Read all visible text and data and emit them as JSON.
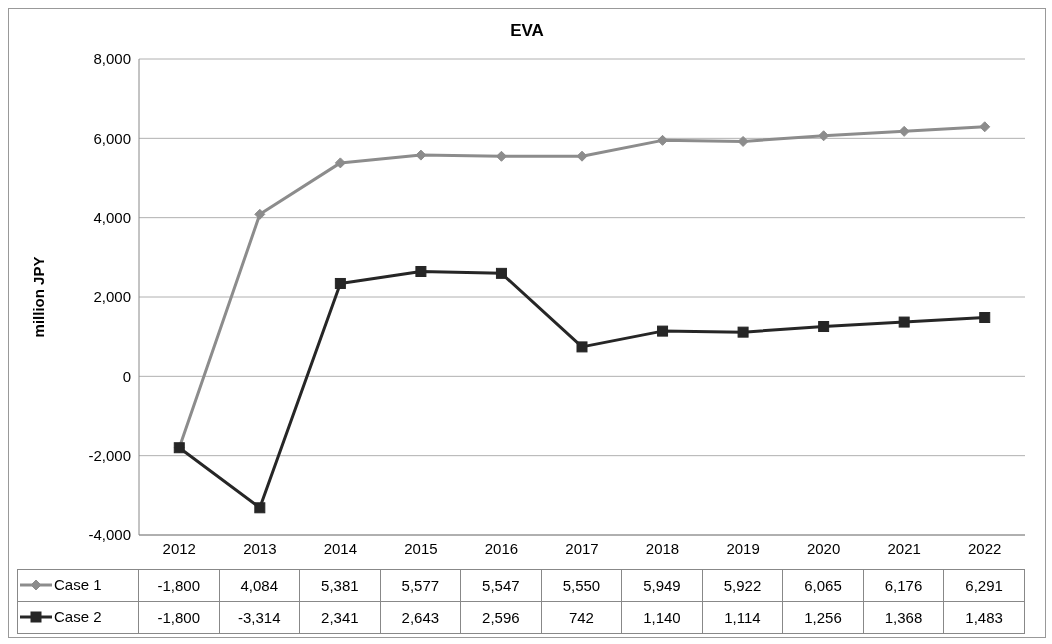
{
  "chart_data": {
    "type": "line",
    "title": "EVA",
    "ylabel": "million JPY",
    "categories": [
      "2012",
      "2013",
      "2014",
      "2015",
      "2016",
      "2017",
      "2018",
      "2019",
      "2020",
      "2021",
      "2022"
    ],
    "series": [
      {
        "name": "Case 1",
        "color": "#8c8c8c",
        "marker": "diamond",
        "values": [
          -1800,
          4084,
          5381,
          5577,
          5547,
          5550,
          5949,
          5922,
          6065,
          6176,
          6291
        ],
        "value_labels": [
          "-1,800",
          "4,084",
          "5,381",
          "5,577",
          "5,547",
          "5,550",
          "5,949",
          "5,922",
          "6,065",
          "6,176",
          "6,291"
        ]
      },
      {
        "name": "Case 2",
        "color": "#262626",
        "marker": "square",
        "values": [
          -1800,
          -3314,
          2341,
          2643,
          2596,
          742,
          1140,
          1114,
          1256,
          1368,
          1483
        ],
        "value_labels": [
          "-1,800",
          "-3,314",
          "2,341",
          "2,643",
          "2,596",
          "742",
          "1,140",
          "1,114",
          "1,256",
          "1,368",
          "1,483"
        ]
      }
    ],
    "ylim": [
      -4000,
      8000
    ],
    "yticks": [
      {
        "value": -4000,
        "label": "-4,000"
      },
      {
        "value": -2000,
        "label": "-2,000"
      },
      {
        "value": 0,
        "label": "0"
      },
      {
        "value": 2000,
        "label": "2,000"
      },
      {
        "value": 4000,
        "label": "4,000"
      },
      {
        "value": 6000,
        "label": "6,000"
      },
      {
        "value": 8000,
        "label": "8,000"
      }
    ],
    "grid": "y",
    "legend": "bottom",
    "line_style": "solid"
  }
}
